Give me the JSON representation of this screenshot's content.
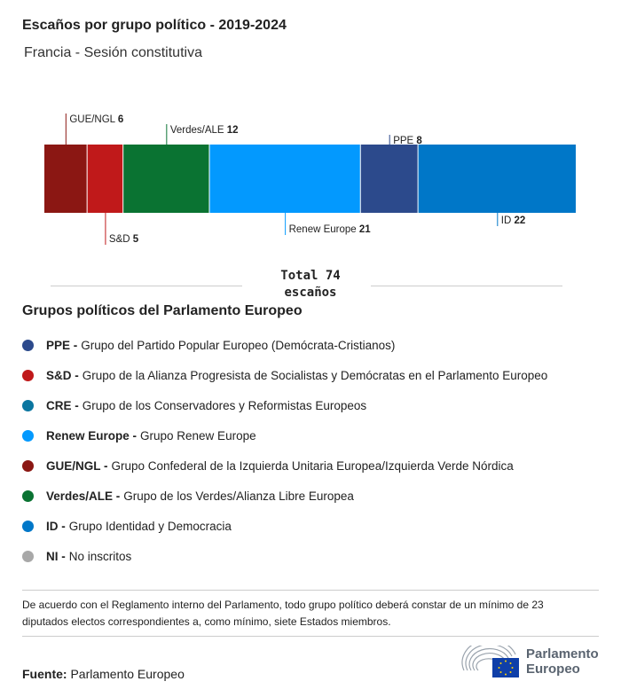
{
  "title": "Escaños por grupo político - 2019-2024",
  "subtitle": "Francia - Sesión constitutiva",
  "chart_data": {
    "type": "bar",
    "orientation": "horizontal-stacked",
    "total": 74,
    "categories": [
      "GUE/NGL",
      "S&D",
      "Verdes/ALE",
      "Renew Europe",
      "PPE",
      "ID"
    ],
    "values": [
      6,
      5,
      12,
      21,
      8,
      22
    ],
    "colors": [
      "#8b1713",
      "#c0191a",
      "#0a7332",
      "#0399fe",
      "#2c4a8c",
      "#0077c8"
    ],
    "label_side": [
      "top",
      "bottom",
      "top",
      "bottom",
      "top",
      "bottom"
    ]
  },
  "total_label": "Total 74",
  "total_unit": "escaños",
  "legend": {
    "title": "Grupos políticos del Parlamento Europeo",
    "items": [
      {
        "abbr": "PPE -",
        "name": "Grupo del Partido Popular Europeo (Demócrata-Cristianos)",
        "color": "#2c4a8c"
      },
      {
        "abbr": "S&D -",
        "name": "Grupo de la Alianza Progresista de Socialistas y Demócratas en el Parlamento Europeo",
        "color": "#c0191a"
      },
      {
        "abbr": "CRE -",
        "name": "Grupo de los Conservadores y Reformistas Europeos",
        "color": "#0b76a0"
      },
      {
        "abbr": "Renew Europe -",
        "name": "Grupo Renew Europe",
        "color": "#0399fe"
      },
      {
        "abbr": "GUE/NGL -",
        "name": "Grupo Confederal de la Izquierda Unitaria Europea/Izquierda Verde Nórdica",
        "color": "#8b1713"
      },
      {
        "abbr": "Verdes/ALE -",
        "name": "Grupo de los Verdes/Alianza Libre Europea",
        "color": "#0a7332"
      },
      {
        "abbr": "ID -",
        "name": "Grupo Identidad y Democracia",
        "color": "#0077c8"
      },
      {
        "abbr": "NI -",
        "name": "No inscritos",
        "color": "#a8a8a8"
      }
    ]
  },
  "note": "De acuerdo con el Reglamento interno del Parlamento, todo grupo político deberá constar de un mínimo de 23 diputados electos correspondientes a, como mínimo, siete Estados miembros.",
  "source": {
    "label": "Fuente:",
    "value": "Parlamento Europeo"
  },
  "logo": {
    "line1": "Parlamento",
    "line2": "Europeo"
  }
}
